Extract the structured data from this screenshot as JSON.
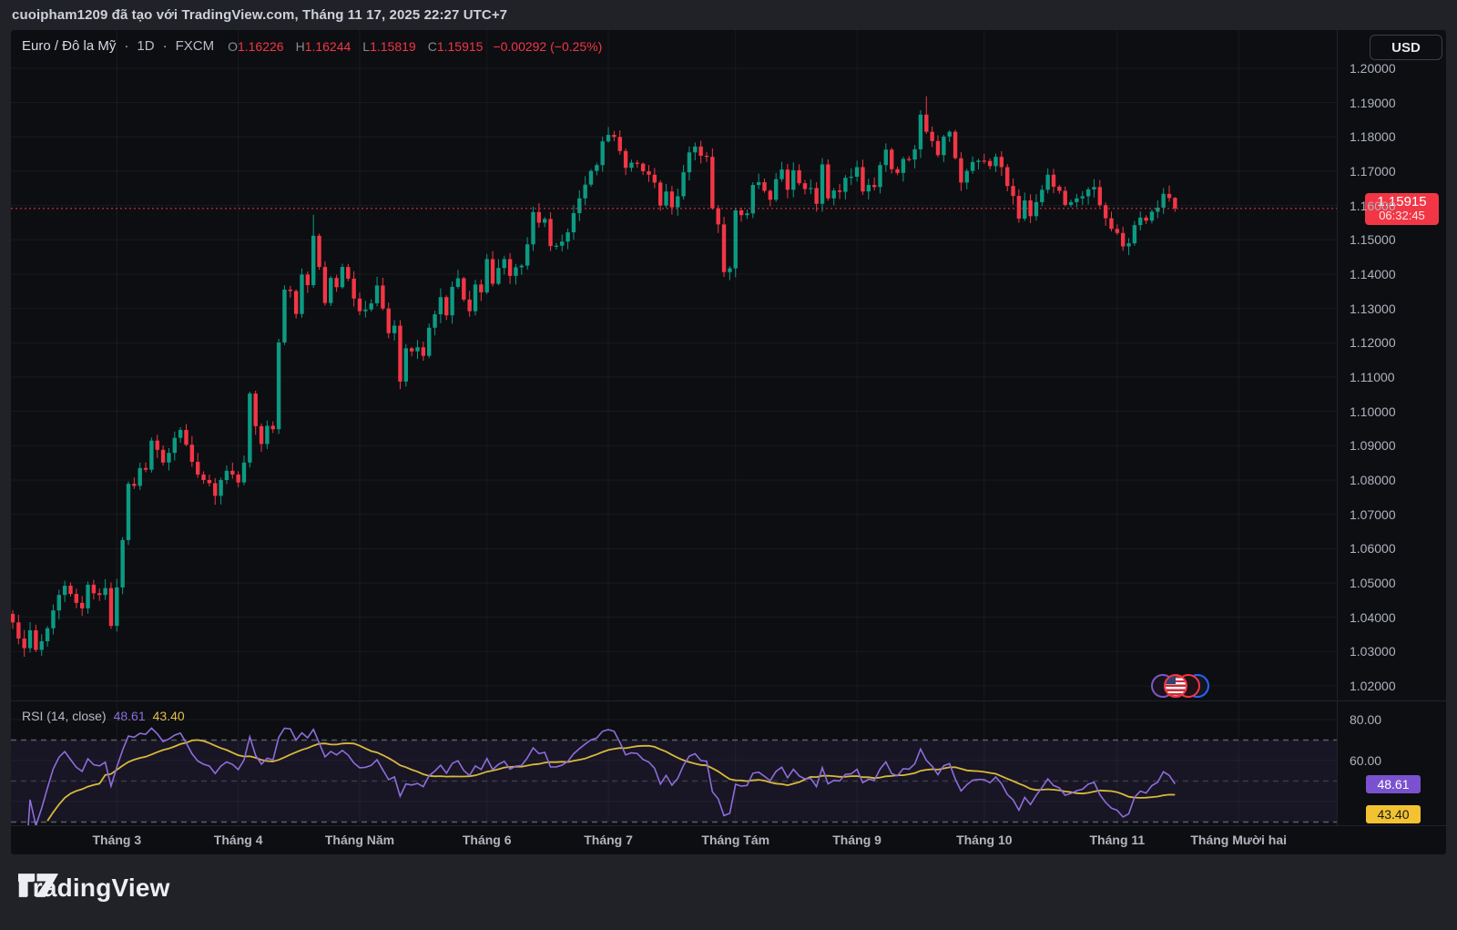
{
  "page": {
    "attribution": "cuoipham1209 đã tạo với TradingView.com, Tháng 11 17, 2025 22:27 UTC+7"
  },
  "header": {
    "symbol": "Euro / Đô la Mỹ",
    "dot1": "·",
    "timeframe": "1D",
    "dot2": "·",
    "exchange": "FXCM",
    "ohlc": [
      {
        "k": "O",
        "v": "1.16226"
      },
      {
        "k": "H",
        "v": "1.16244"
      },
      {
        "k": "L",
        "v": "1.15819"
      },
      {
        "k": "C",
        "v": "1.15915"
      }
    ],
    "change": "−0.00292 (−0.25%)",
    "currency_button": "USD"
  },
  "price_scale": {
    "ticks": [
      1.2,
      1.19,
      1.18,
      1.17,
      1.16,
      1.15,
      1.14,
      1.13,
      1.12,
      1.11,
      1.1,
      1.09,
      1.08,
      1.07,
      1.06,
      1.05,
      1.04,
      1.03,
      1.02
    ],
    "decimals": 5,
    "last_price_label": "1.15915",
    "countdown": "06:32:45"
  },
  "rsi_panel": {
    "title": "RSI",
    "params": "(14, close)",
    "value": "48.61",
    "ma_value": "43.40",
    "ticks": [
      {
        "v": 80,
        "label": "80.00"
      },
      {
        "v": 60,
        "label": "60.00"
      }
    ]
  },
  "footer": {
    "brand": "TradingView"
  },
  "colors": {
    "up": "#0c9a82",
    "down": "#f23645",
    "accent_red": "#f23645",
    "rsi_line": "#8e6ddb",
    "rsi_ma_line": "#d8b93c",
    "rsi_badge": "#7a52cf",
    "rsi_ma_badge": "#f2c230",
    "grid": "rgba(244,246,252,0.05)",
    "band_fill": "rgba(126,87,194,0.10)"
  },
  "chart_data": {
    "type": "candlestick",
    "title": "Euro / Đô la Mỹ (EUR/USD) 1D FXCM",
    "timeframe": "1D",
    "price_axis_range": [
      1.02,
      1.2
    ],
    "first_open": 1.041,
    "closes": [
      1.0385,
      1.0338,
      1.031,
      1.0362,
      1.0305,
      1.033,
      1.0368,
      1.042,
      1.0465,
      1.0492,
      1.0468,
      1.0442,
      1.0426,
      1.0495,
      1.047,
      1.0465,
      1.0485,
      1.0375,
      1.0487,
      1.0625,
      1.0789,
      1.0783,
      1.0835,
      1.083,
      1.0915,
      1.0888,
      1.0851,
      1.0879,
      1.0923,
      1.0946,
      1.0903,
      1.0853,
      1.0816,
      1.08,
      1.0791,
      1.0754,
      1.08,
      1.0827,
      1.0816,
      1.0793,
      1.0851,
      1.1052,
      1.0957,
      1.0905,
      1.0958,
      1.0948,
      1.1201,
      1.1355,
      1.1351,
      1.1284,
      1.1399,
      1.1368,
      1.1512,
      1.1421,
      1.1316,
      1.1389,
      1.1362,
      1.1421,
      1.1387,
      1.1329,
      1.1292,
      1.1297,
      1.1315,
      1.1367,
      1.13,
      1.1228,
      1.125,
      1.1087,
      1.1184,
      1.1175,
      1.1187,
      1.1162,
      1.1244,
      1.1283,
      1.1333,
      1.128,
      1.1363,
      1.1388,
      1.1326,
      1.1292,
      1.137,
      1.1347,
      1.1444,
      1.1372,
      1.1418,
      1.1444,
      1.1395,
      1.142,
      1.1425,
      1.1487,
      1.1581,
      1.155,
      1.1561,
      1.1482,
      1.1483,
      1.1495,
      1.1522,
      1.1578,
      1.1621,
      1.1661,
      1.1701,
      1.1718,
      1.1787,
      1.1806,
      1.18,
      1.1759,
      1.171,
      1.1725,
      1.1722,
      1.17,
      1.169,
      1.1667,
      1.16,
      1.1641,
      1.1595,
      1.1627,
      1.1697,
      1.1755,
      1.1772,
      1.1745,
      1.1742,
      1.1592,
      1.1545,
      1.1406,
      1.1417,
      1.1586,
      1.1572,
      1.1577,
      1.166,
      1.1668,
      1.1643,
      1.1617,
      1.1677,
      1.1705,
      1.1646,
      1.1703,
      1.1665,
      1.1648,
      1.1651,
      1.1605,
      1.172,
      1.1621,
      1.1644,
      1.164,
      1.1681,
      1.1684,
      1.1712,
      1.1641,
      1.166,
      1.1654,
      1.1718,
      1.1763,
      1.1706,
      1.1695,
      1.1736,
      1.1734,
      1.1764,
      1.1865,
      1.1815,
      1.1788,
      1.1747,
      1.1801,
      1.1815,
      1.1738,
      1.1667,
      1.1701,
      1.1727,
      1.1731,
      1.173,
      1.1715,
      1.1742,
      1.1712,
      1.1657,
      1.1628,
      1.1562,
      1.1615,
      1.1569,
      1.161,
      1.1646,
      1.169,
      1.1655,
      1.1643,
      1.1602,
      1.161,
      1.1621,
      1.1627,
      1.1647,
      1.1654,
      1.1601,
      1.1563,
      1.1532,
      1.152,
      1.1481,
      1.149,
      1.1543,
      1.1565,
      1.1556,
      1.1582,
      1.1594,
      1.1634,
      1.1622,
      1.15915
    ],
    "extremes": {
      "2": {
        "l": 1.0285
      },
      "29": {
        "h": 1.0954
      },
      "52": {
        "h": 1.1573
      },
      "67": {
        "l": 1.1065
      },
      "103": {
        "h": 1.1829
      },
      "123": {
        "l": 1.1392
      },
      "125": {
        "l": 1.1391
      },
      "157": {
        "h": 1.1878
      },
      "158": {
        "h": 1.19185
      },
      "192": {
        "l": 1.1468
      },
      "201": {
        "o": 1.16226,
        "h": 1.16244,
        "l": 1.15819
      }
    },
    "last_price": 1.15915,
    "months": [
      {
        "label": "Tháng 3",
        "i": 18
      },
      {
        "label": "Tháng 4",
        "i": 39
      },
      {
        "label": "Tháng Năm",
        "i": 60
      },
      {
        "label": "Tháng 6",
        "i": 82
      },
      {
        "label": "Tháng 7",
        "i": 103
      },
      {
        "label": "Tháng Tám",
        "i": 125
      },
      {
        "label": "Tháng 9",
        "i": 146
      },
      {
        "label": "Tháng 10",
        "i": 168
      },
      {
        "label": "Tháng 11",
        "i": 191
      },
      {
        "label": "Tháng Mười hai",
        "i": 212
      }
    ],
    "rsi": {
      "period": 14,
      "ma_period": 14,
      "upper": 70,
      "middle": 50,
      "lower": 30,
      "grid": [
        80,
        60,
        40
      ],
      "last": 48.61,
      "ma_last": 43.4
    }
  }
}
